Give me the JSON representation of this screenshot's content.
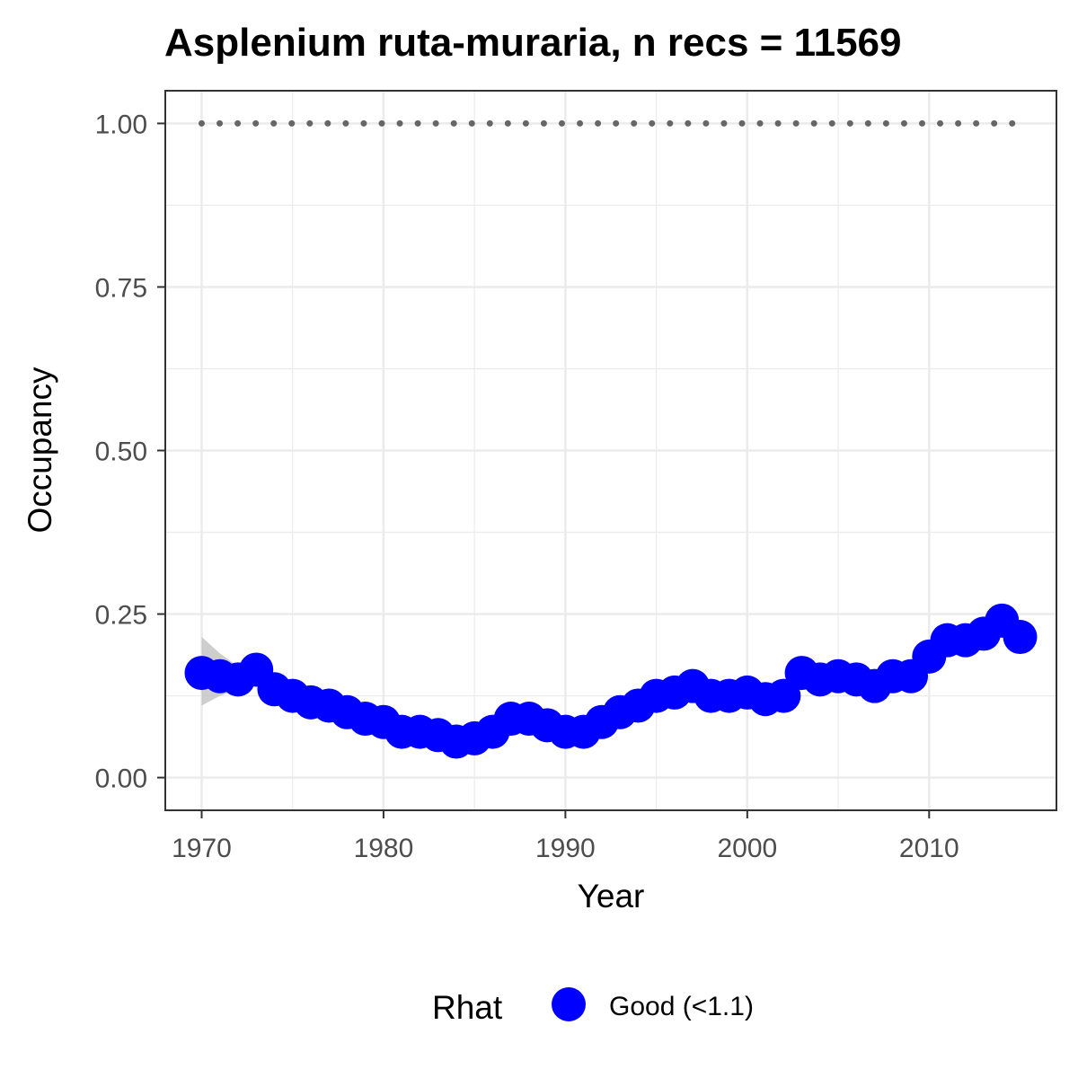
{
  "chart_data": {
    "type": "line",
    "title": "Asplenium ruta-muraria, n recs = 11569",
    "xlabel": "Year",
    "ylabel": "Occupancy",
    "xlim": [
      1968,
      2017
    ],
    "ylim": [
      -0.05,
      1.05
    ],
    "x_ticks": [
      1970,
      1980,
      1990,
      2000,
      2010
    ],
    "x_tick_labels": [
      "1970",
      "1980",
      "1990",
      "2000",
      "2010"
    ],
    "y_ticks": [
      0,
      0.25,
      0.5,
      0.75,
      1.0
    ],
    "y_tick_labels": [
      "0.00",
      "0.25",
      "0.50",
      "0.75",
      "1.00"
    ],
    "grid": true,
    "legend": {
      "title": "Rhat",
      "position": "bottom",
      "entries": [
        {
          "label": "Good (<1.1)",
          "color": "#0000ff"
        }
      ]
    },
    "series": [
      {
        "name": "Good (<1.1)",
        "color": "#0000ff",
        "x": [
          1970,
          1971,
          1972,
          1973,
          1974,
          1975,
          1976,
          1977,
          1978,
          1979,
          1980,
          1981,
          1982,
          1983,
          1984,
          1985,
          1986,
          1987,
          1988,
          1989,
          1990,
          1991,
          1992,
          1993,
          1994,
          1995,
          1996,
          1997,
          1998,
          1999,
          2000,
          2001,
          2002,
          2003,
          2004,
          2005,
          2006,
          2007,
          2008,
          2009,
          2010,
          2011,
          2012,
          2013,
          2014,
          2015
        ],
        "y": [
          0.16,
          0.155,
          0.15,
          0.165,
          0.135,
          0.125,
          0.115,
          0.11,
          0.1,
          0.09,
          0.085,
          0.07,
          0.07,
          0.065,
          0.055,
          0.06,
          0.07,
          0.09,
          0.09,
          0.08,
          0.07,
          0.07,
          0.085,
          0.1,
          0.11,
          0.125,
          0.13,
          0.14,
          0.125,
          0.125,
          0.13,
          0.12,
          0.125,
          0.16,
          0.15,
          0.155,
          0.15,
          0.14,
          0.155,
          0.155,
          0.185,
          0.21,
          0.21,
          0.22,
          0.24,
          0.215
        ]
      }
    ],
    "ci_band": {
      "color": "#bebebe",
      "x": [
        1970,
        1971,
        1972,
        1973,
        1974
      ],
      "lower": [
        0.11,
        0.125,
        0.135,
        0.148,
        0.128
      ],
      "upper": [
        0.215,
        0.19,
        0.17,
        0.18,
        0.145
      ]
    },
    "reference_line": {
      "y": 1.0,
      "style": "dotted",
      "color": "#666666"
    }
  }
}
